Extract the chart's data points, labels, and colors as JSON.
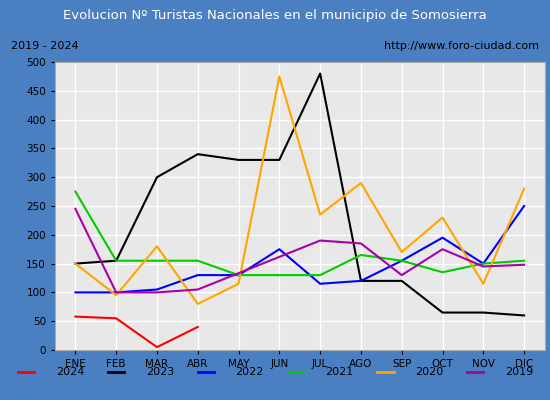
{
  "title": "Evolucion Nº Turistas Nacionales en el municipio de Somosierra",
  "subtitle_left": "2019 - 2024",
  "subtitle_right": "http://www.foro-ciudad.com",
  "months": [
    "ENE",
    "FEB",
    "MAR",
    "ABR",
    "MAY",
    "JUN",
    "JUL",
    "AGO",
    "SEP",
    "OCT",
    "NOV",
    "DIC"
  ],
  "series": {
    "2024": [
      58,
      55,
      5,
      40,
      null,
      null,
      null,
      null,
      null,
      null,
      null,
      null
    ],
    "2023": [
      150,
      155,
      300,
      340,
      330,
      330,
      480,
      120,
      120,
      65,
      65,
      60
    ],
    "2022": [
      100,
      100,
      105,
      130,
      130,
      175,
      115,
      120,
      155,
      195,
      150,
      250
    ],
    "2021": [
      275,
      155,
      155,
      155,
      130,
      130,
      130,
      165,
      155,
      135,
      150,
      155
    ],
    "2020": [
      150,
      95,
      180,
      80,
      115,
      475,
      235,
      290,
      170,
      230,
      115,
      280
    ],
    "2019": [
      245,
      100,
      100,
      105,
      null,
      null,
      190,
      185,
      130,
      175,
      145,
      148
    ]
  },
  "colors": {
    "2024": "#ff0000",
    "2023": "#000000",
    "2022": "#0000ff",
    "2021": "#00cc00",
    "2020": "#ffa500",
    "2019": "#aa00aa"
  },
  "ylim": [
    0,
    500
  ],
  "yticks": [
    0,
    50,
    100,
    150,
    200,
    250,
    300,
    350,
    400,
    450,
    500
  ],
  "title_bg": "#4a7fc1",
  "title_color": "#ffffff",
  "plot_bg": "#e8e8e8",
  "border_color": "#4a7fc1",
  "grid_color": "#ffffff",
  "subtitle_box_color": "#ffffff",
  "legend_years": [
    "2024",
    "2023",
    "2022",
    "2021",
    "2020",
    "2019"
  ]
}
